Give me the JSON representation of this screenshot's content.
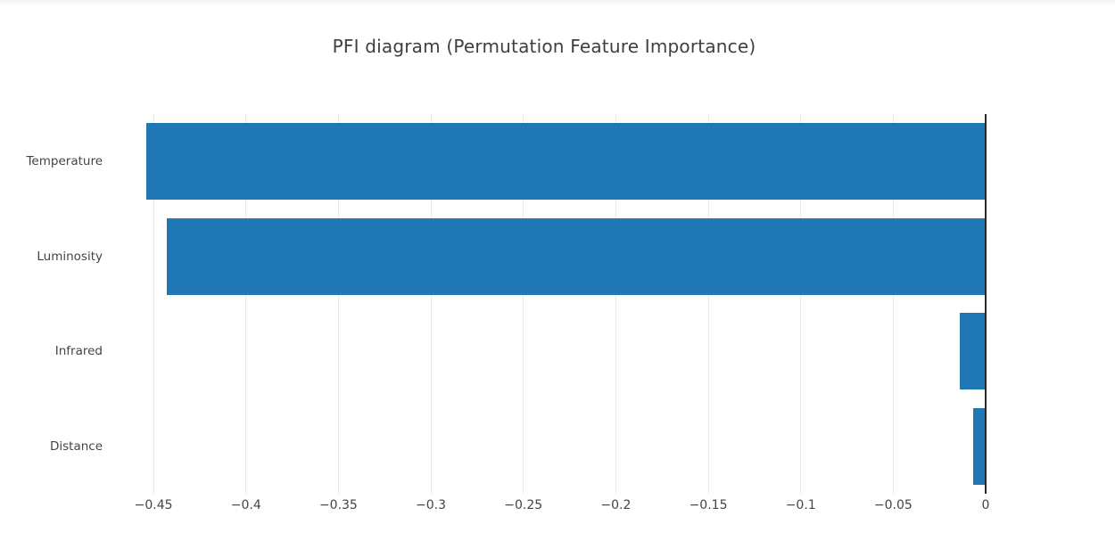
{
  "title": "PFI diagram (Permutation Feature Importance)",
  "colors": {
    "bar": "#1f77b4",
    "grid": "#eaeaea",
    "zero_line": "#2a2a2a",
    "tick_text": "#444444",
    "title_text": "#3f3f3f",
    "background": "#ffffff"
  },
  "chart_data": {
    "type": "bar",
    "orientation": "horizontal",
    "title": "PFI diagram (Permutation Feature Importance)",
    "categories": [
      "Temperature",
      "Luminosity",
      "Infrared",
      "Distance"
    ],
    "values": [
      -0.454,
      -0.443,
      -0.014,
      -0.007
    ],
    "xlabel": "",
    "ylabel": "",
    "xlim": [
      -0.4703,
      0.0217
    ],
    "xticks": [
      -0.45,
      -0.4,
      -0.35,
      -0.3,
      -0.25,
      -0.2,
      -0.15,
      -0.1,
      -0.05,
      0
    ],
    "xtick_labels": [
      "−0.45",
      "−0.4",
      "−0.35",
      "−0.3",
      "−0.25",
      "−0.2",
      "−0.15",
      "−0.1",
      "−0.05",
      "0"
    ],
    "grid": true,
    "legend": false,
    "bar_color": "#1f77b4",
    "zeroline": true
  }
}
